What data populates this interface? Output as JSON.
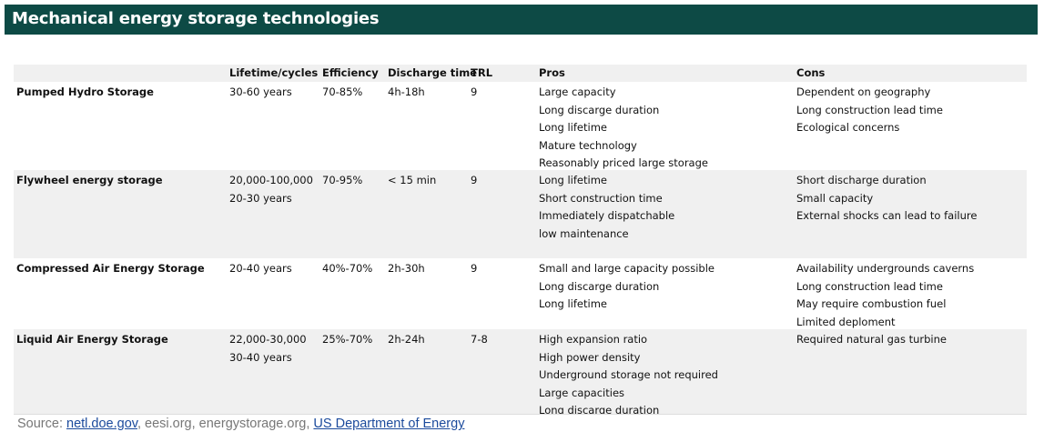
{
  "title": "Mechanical energy storage technologies",
  "table": {
    "columns": [
      "",
      "Lifetime/cycles",
      "Efficiency",
      "Discharge time",
      "TRL",
      "Pros",
      "Cons"
    ],
    "rows": [
      [
        [
          "Pumped Hydro Storage"
        ],
        [
          "30-60 years"
        ],
        [
          "70-85%"
        ],
        [
          "4h-18h"
        ],
        [
          "9"
        ],
        [
          "Large capacity",
          "Long discarge duration",
          "Long lifetime",
          "Mature technology",
          "Reasonably priced large storage"
        ],
        [
          "Dependent on geography",
          "Long construction lead time",
          "Ecological concerns"
        ]
      ],
      [
        [
          "Flywheel energy storage"
        ],
        [
          "20,000-100,000",
          "20-30 years"
        ],
        [
          "70-95%"
        ],
        [
          "< 15 min"
        ],
        [
          "9"
        ],
        [
          "Long lifetime",
          "Short construction time",
          "Immediately dispatchable",
          "low maintenance"
        ],
        [
          "Short discharge duration",
          "Small capacity",
          "External shocks can lead to failure"
        ]
      ],
      [
        [
          "Compressed Air Energy Storage"
        ],
        [
          "20-40 years"
        ],
        [
          "40%-70%"
        ],
        [
          "2h-30h"
        ],
        [
          "9"
        ],
        [
          "Small and large capacity possible",
          "Long discarge duration",
          "Long lifetime"
        ],
        [
          "Availability undergrounds caverns",
          "Long construction lead time",
          "May require combustion fuel",
          "Limited deploment"
        ]
      ],
      [
        [
          "Liquid Air Energy Storage"
        ],
        [
          "22,000-30,000",
          "30-40 years"
        ],
        [
          "25%-70%"
        ],
        [
          "2h-24h"
        ],
        [
          "7-8"
        ],
        [
          "High expansion ratio",
          "High power density",
          "Underground storage not required",
          "Large capacities",
          "Long discarge duration"
        ],
        [
          "Required natural gas turbine"
        ]
      ]
    ]
  },
  "source": {
    "label": "Source:",
    "separator": ",",
    "items": [
      {
        "text": "netl.doe.gov",
        "link": true
      },
      {
        "text": "eesi.org",
        "link": false
      },
      {
        "text": "energystorage.org",
        "link": false
      },
      {
        "text": "US Department of Energy",
        "link": true
      }
    ]
  }
}
